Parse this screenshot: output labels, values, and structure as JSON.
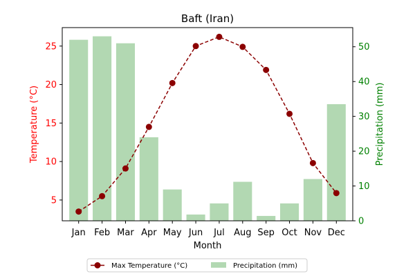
{
  "chart_data": {
    "type": "bar",
    "title": "Baft (Iran)",
    "xlabel": "Month",
    "ylabel_left": "Temperature (°C)",
    "ylabel_right": "Precipitation (mm)",
    "categories": [
      "Jan",
      "Feb",
      "Mar",
      "Apr",
      "May",
      "Jun",
      "Jul",
      "Aug",
      "Sep",
      "Oct",
      "Nov",
      "Dec"
    ],
    "ylim_left": [
      2.3,
      27.4
    ],
    "ylim_right": [
      0,
      55.5
    ],
    "yticks_left": [
      5,
      10,
      15,
      20,
      25
    ],
    "yticks_right": [
      0,
      10,
      20,
      30,
      40,
      50
    ],
    "series": [
      {
        "name": "Max Temperature (°C)",
        "kind": "line",
        "axis": "left",
        "color": "#8b0000",
        "style": "dashed",
        "marker": "circle",
        "values": [
          3.5,
          5.5,
          9.1,
          14.5,
          20.2,
          25.0,
          26.2,
          24.9,
          21.9,
          16.2,
          9.8,
          5.9
        ]
      },
      {
        "name": "Precipitation (mm)",
        "kind": "bar",
        "axis": "right",
        "color": "#b2d8b2",
        "values": [
          52.0,
          53.0,
          51.0,
          24.0,
          9.0,
          1.8,
          5.0,
          11.2,
          1.4,
          5.0,
          12.0,
          33.5
        ]
      }
    ],
    "legend_placement": "bottom-center",
    "grid": false,
    "left_axis_color": "#ff0000",
    "right_axis_color": "#008000"
  }
}
